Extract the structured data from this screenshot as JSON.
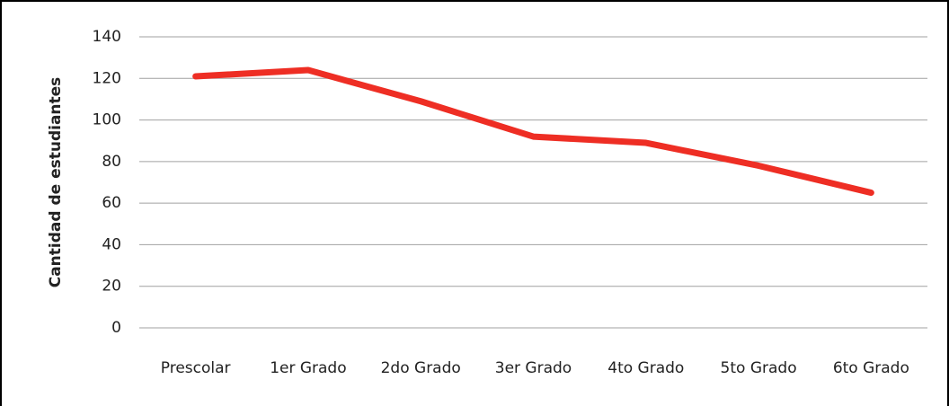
{
  "chart_data": {
    "type": "line",
    "y_label": "Cantidad de estudiantes",
    "categories": [
      "Prescolar",
      "1er Grado",
      "2do Grado",
      "3er Grado",
      "4to Grado",
      "5to Grado",
      "6to Grado"
    ],
    "values": [
      121,
      124,
      109,
      92,
      89,
      78,
      65
    ],
    "color": "#ee2e24",
    "ylim": [
      0,
      140
    ],
    "yticks": [
      0,
      20,
      40,
      60,
      80,
      100,
      120,
      140
    ],
    "grid": true
  }
}
